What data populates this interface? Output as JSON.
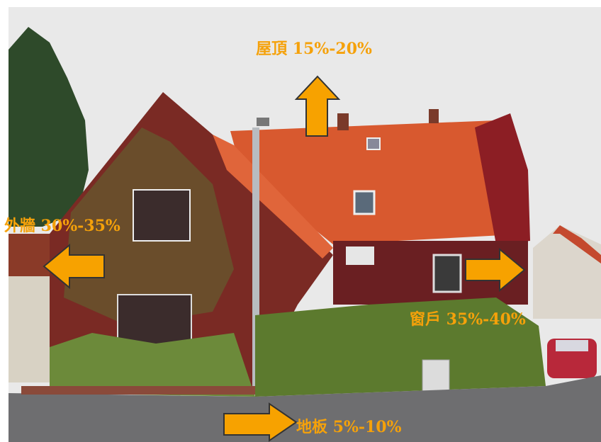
{
  "annotations": [
    {
      "label": "屋頂 15%-20%"
    },
    {
      "label": "外牆 30%-35%"
    },
    {
      "label": "窗戶 35%-40%"
    },
    {
      "label": "地板 5%-10%"
    }
  ]
}
